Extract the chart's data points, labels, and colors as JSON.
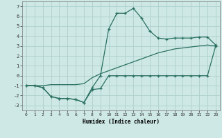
{
  "xlabel": "Humidex (Indice chaleur)",
  "xlim": [
    -0.5,
    23.5
  ],
  "ylim": [
    -3.5,
    7.5
  ],
  "xticks": [
    0,
    1,
    2,
    3,
    4,
    5,
    6,
    7,
    8,
    9,
    10,
    11,
    12,
    13,
    14,
    15,
    16,
    17,
    18,
    19,
    20,
    21,
    22,
    23
  ],
  "yticks": [
    -3,
    -2,
    -1,
    0,
    1,
    2,
    3,
    4,
    5,
    6,
    7
  ],
  "bg_color": "#cde8e5",
  "line_color": "#2a7060",
  "grid_color": "#aed0cc",
  "line1_x": [
    0,
    1,
    2,
    3,
    4,
    5,
    6,
    7,
    8,
    9,
    10,
    11,
    12,
    13,
    14,
    15,
    16,
    17,
    18,
    19,
    20,
    21,
    22,
    23
  ],
  "line1_y": [
    -1,
    -1,
    -1.2,
    -2.1,
    -2.3,
    -2.3,
    -2.4,
    -2.7,
    -1.4,
    -1.3,
    0.0,
    0.0,
    0.0,
    0.0,
    0.0,
    0.0,
    0.0,
    0.0,
    0.0,
    0.0,
    0.0,
    0.0,
    0.0,
    3.0
  ],
  "line2_x": [
    0,
    1,
    2,
    3,
    4,
    5,
    6,
    7,
    8,
    9,
    10,
    11,
    12,
    13,
    14,
    15,
    16,
    17,
    18,
    19,
    20,
    21,
    22,
    23
  ],
  "line2_y": [
    -1,
    -1,
    -1.2,
    -2.1,
    -2.3,
    -2.3,
    -2.4,
    -2.7,
    -1.2,
    0.0,
    4.7,
    6.3,
    6.3,
    6.8,
    5.8,
    4.5,
    3.8,
    3.7,
    3.8,
    3.8,
    3.8,
    3.9,
    3.9,
    3.1
  ],
  "line3_x": [
    0,
    1,
    2,
    3,
    4,
    5,
    6,
    7,
    8,
    9,
    10,
    11,
    12,
    13,
    14,
    15,
    16,
    17,
    18,
    19,
    20,
    21,
    22,
    23
  ],
  "line3_y": [
    -1.0,
    -1.0,
    -1.0,
    -0.9,
    -0.9,
    -0.9,
    -0.9,
    -0.8,
    -0.2,
    0.2,
    0.5,
    0.8,
    1.1,
    1.4,
    1.7,
    2.0,
    2.3,
    2.5,
    2.7,
    2.8,
    2.9,
    3.0,
    3.1,
    3.0
  ]
}
